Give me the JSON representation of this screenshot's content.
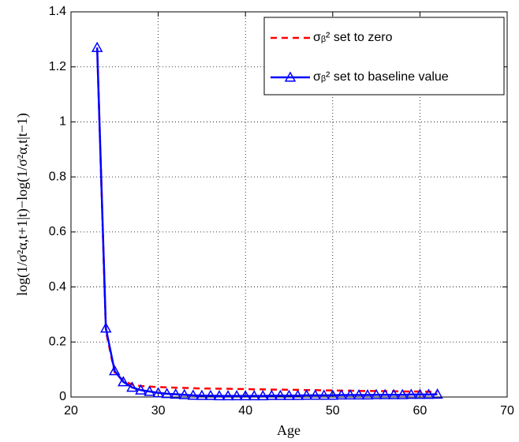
{
  "chart_data": {
    "type": "line",
    "xlabel": "Age",
    "ylabel": "log(1/σ²α,t+1|t)−log(1/σ²α,t|t−1)",
    "x": [
      23,
      24,
      25,
      26,
      27,
      28,
      29,
      30,
      31,
      32,
      33,
      34,
      35,
      36,
      37,
      38,
      39,
      40,
      41,
      42,
      43,
      44,
      45,
      46,
      47,
      48,
      49,
      50,
      51,
      52,
      53,
      54,
      55,
      56,
      57,
      58,
      59,
      60,
      61,
      62
    ],
    "series": [
      {
        "name": "σᵦ² set to zero",
        "color": "#ff0000",
        "style": "dashed",
        "marker": "none",
        "values": [
          1.27,
          0.24,
          0.09,
          0.06,
          0.045,
          0.04,
          0.038,
          0.036,
          0.035,
          0.034,
          0.033,
          0.032,
          0.031,
          0.031,
          0.03,
          0.03,
          0.029,
          0.029,
          0.028,
          0.028,
          0.027,
          0.027,
          0.026,
          0.026,
          0.025,
          0.025,
          0.024,
          0.024,
          0.023,
          0.023,
          0.022,
          0.022,
          0.022,
          0.021,
          0.021,
          0.02,
          0.02,
          0.02,
          0.019,
          0.019
        ]
      },
      {
        "name": "σᵦ² set to baseline value",
        "color": "#0000ff",
        "style": "solid",
        "marker": "triangle",
        "values": [
          1.27,
          0.25,
          0.095,
          0.055,
          0.035,
          0.025,
          0.02,
          0.015,
          0.012,
          0.01,
          0.008,
          0.006,
          0.005,
          0.005,
          0.004,
          0.004,
          0.004,
          0.004,
          0.004,
          0.004,
          0.005,
          0.005,
          0.005,
          0.005,
          0.006,
          0.006,
          0.006,
          0.006,
          0.007,
          0.007,
          0.007,
          0.007,
          0.008,
          0.008,
          0.008,
          0.008,
          0.009,
          0.009,
          0.009,
          0.01
        ]
      }
    ],
    "xlim": [
      20,
      70
    ],
    "xticks": [
      20,
      30,
      40,
      50,
      60,
      70
    ],
    "ylim": [
      0,
      1.4
    ],
    "yticks": [
      0,
      0.2,
      0.4,
      0.6,
      0.8,
      1,
      1.2,
      1.4
    ],
    "grid": true,
    "legend": "northeast"
  }
}
